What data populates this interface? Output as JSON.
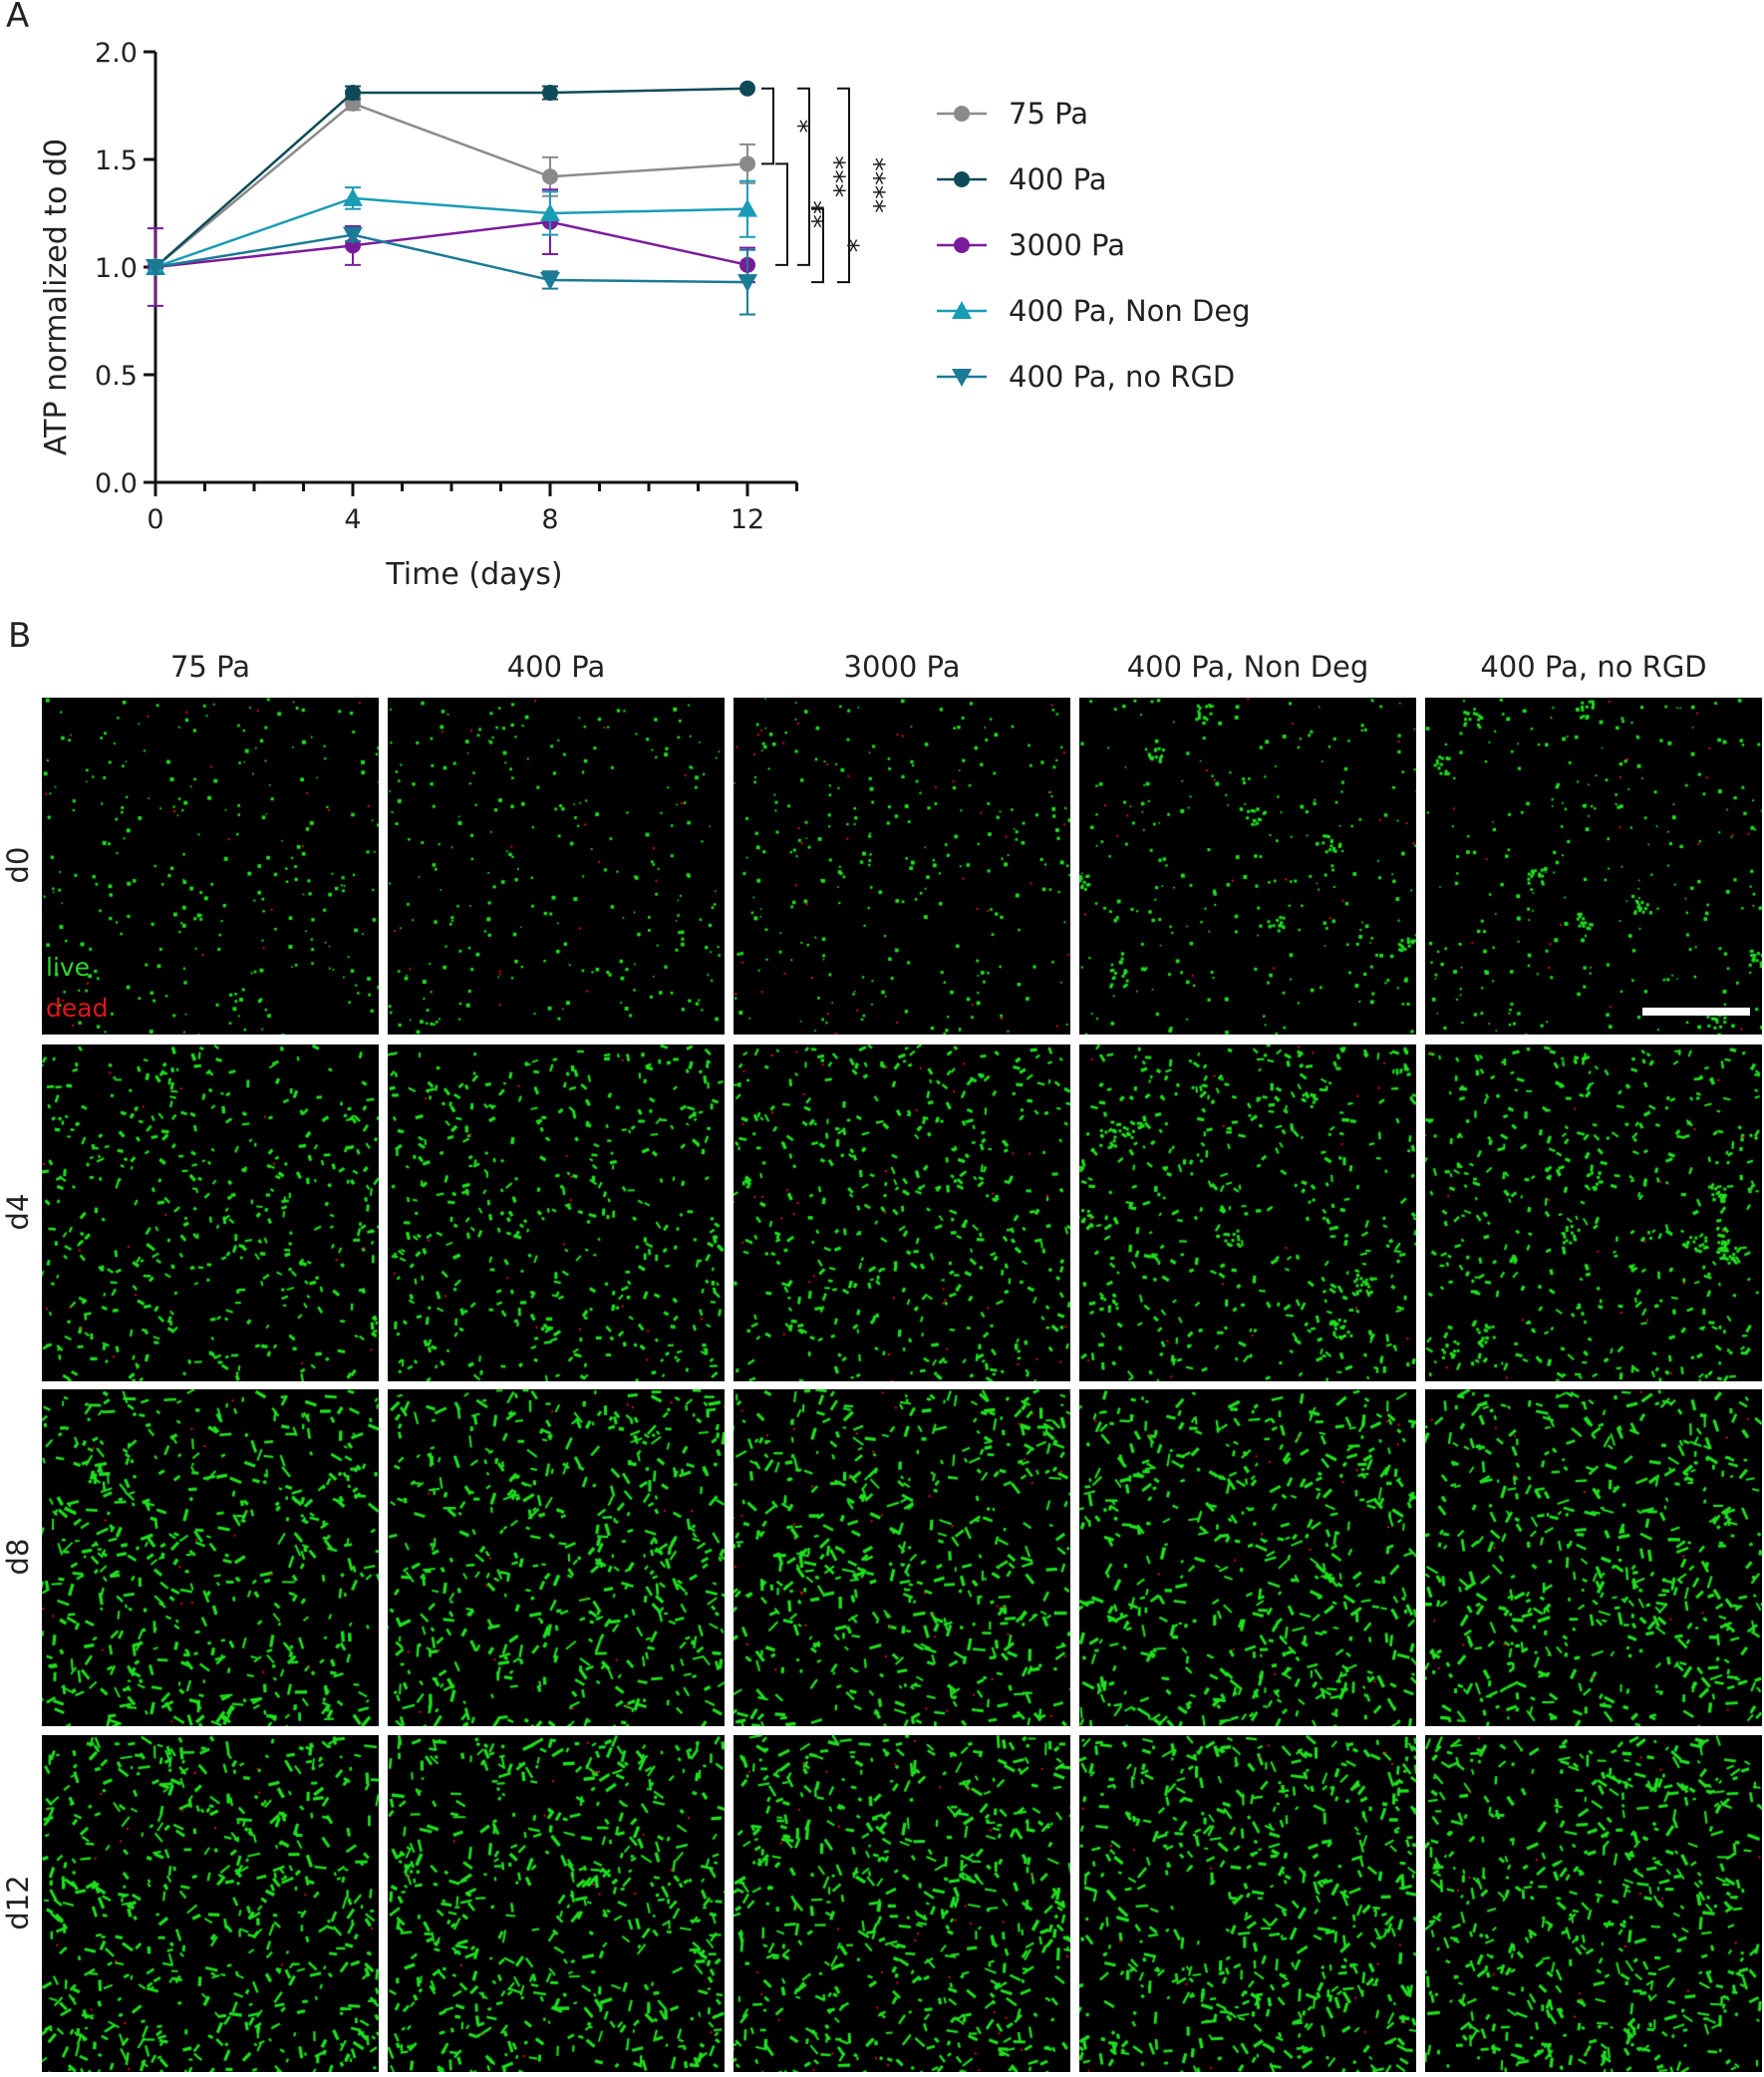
{
  "panel_a_label": "A",
  "panel_b_label": "B",
  "chart_data": {
    "type": "line",
    "xlabel": "Time (days)",
    "ylabel": "ATP normalized to d0",
    "x": [
      0,
      4,
      8,
      12
    ],
    "xticks": [
      "0",
      "4",
      "8",
      "12"
    ],
    "yticks": [
      "0.0",
      "0.5",
      "1.0",
      "1.5",
      "2.0"
    ],
    "xlim": [
      0,
      13
    ],
    "ylim": [
      0,
      2.0
    ],
    "grid": false,
    "legend_position": "right",
    "series": [
      {
        "name": "75 Pa",
        "color": "#8a8a8a",
        "marker": "circle",
        "values": [
          1.0,
          1.76,
          1.42,
          1.48
        ],
        "err": [
          0.03,
          0.03,
          0.09,
          0.09
        ]
      },
      {
        "name": "400 Pa",
        "color": "#0e4a57",
        "marker": "circle",
        "values": [
          1.0,
          1.81,
          1.81,
          1.83
        ],
        "err": [
          0.03,
          0.03,
          0.03,
          0.0
        ]
      },
      {
        "name": "3000 Pa",
        "color": "#7a1b9c",
        "marker": "circle",
        "values": [
          1.0,
          1.1,
          1.21,
          1.01
        ],
        "err": [
          0.18,
          0.09,
          0.15,
          0.08
        ]
      },
      {
        "name": "400 Pa, Non Deg",
        "color": "#1a9bb5",
        "marker": "triangle-up",
        "values": [
          1.0,
          1.32,
          1.25,
          1.27
        ],
        "err": [
          0.03,
          0.05,
          0.1,
          0.13
        ]
      },
      {
        "name": "400 Pa, no RGD",
        "color": "#1b7a96",
        "marker": "triangle-down",
        "values": [
          1.0,
          1.15,
          0.94,
          0.93
        ],
        "err": [
          0.03,
          0.03,
          0.04,
          0.15
        ]
      }
    ],
    "significance": [
      {
        "label": "*",
        "from": "400 Pa",
        "to": "75 Pa"
      },
      {
        "label": "***",
        "from": "400 Pa",
        "to": "3000 Pa"
      },
      {
        "label": "****",
        "from": "400 Pa",
        "to": "400 Pa, no RGD"
      },
      {
        "label": "**",
        "from": "75 Pa",
        "to": "3000 Pa"
      },
      {
        "label": "*",
        "from": "400 Pa, Non Deg",
        "to": "400 Pa, no RGD"
      }
    ]
  },
  "micrographs": {
    "columns": [
      "75 Pa",
      "400 Pa",
      "3000 Pa",
      "400 Pa, Non Deg",
      "400 Pa, no RGD"
    ],
    "rows": [
      "d0",
      "d4",
      "d8",
      "d12"
    ],
    "overlay_live": "live",
    "overlay_dead": "dead",
    "live_color": "#1fe01f",
    "dead_color": "#e01010"
  }
}
